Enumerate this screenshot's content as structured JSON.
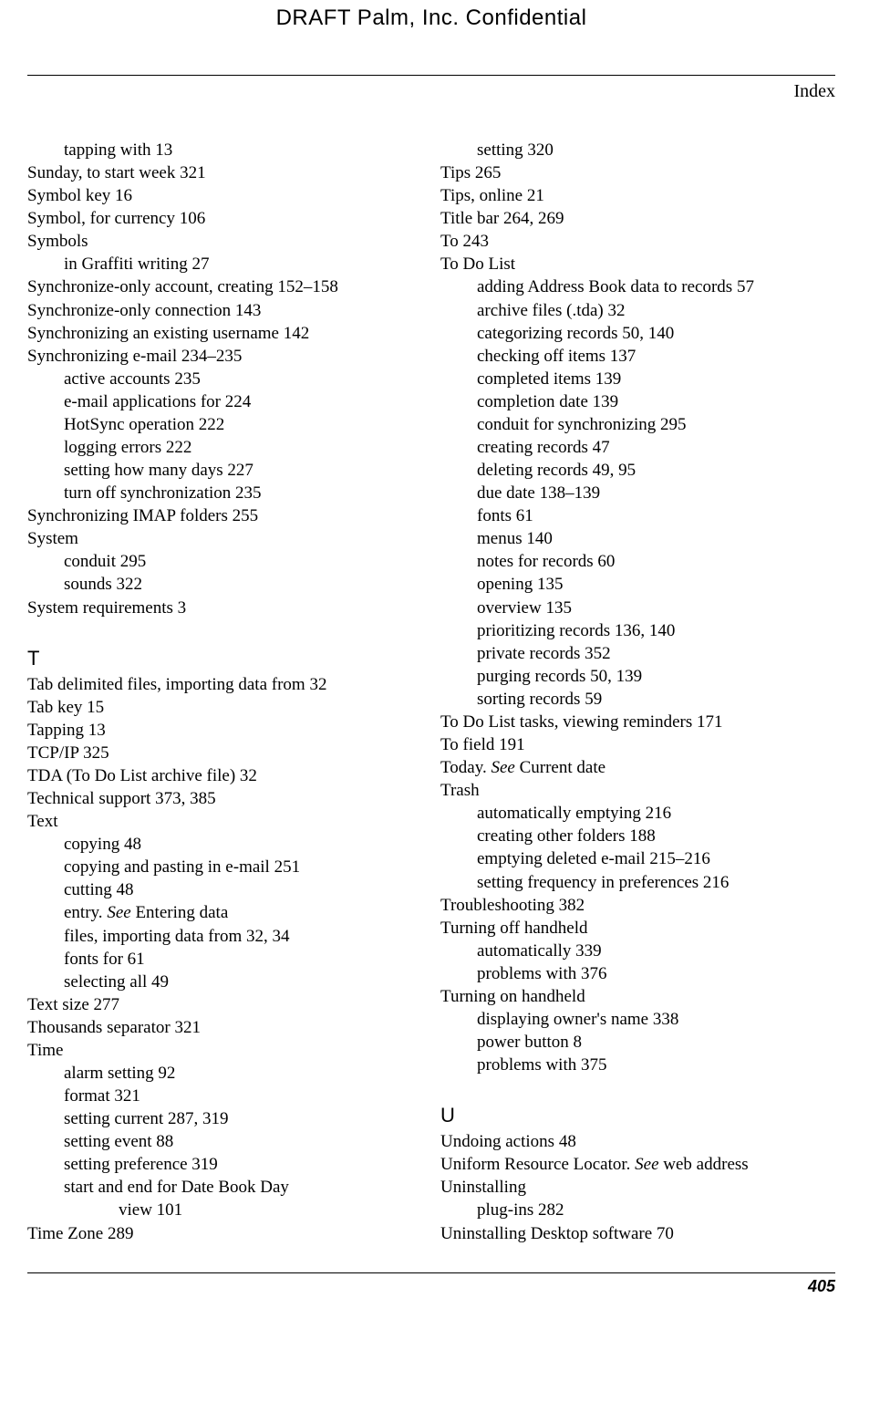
{
  "header": {
    "draft_line": "DRAFT   Palm, Inc. Confidential",
    "section_label": "Index"
  },
  "footer": {
    "page_number": "405"
  },
  "left": [
    {
      "t": "tapping with  13",
      "lvl": 1
    },
    {
      "t": "Sunday, to start week  321",
      "lvl": 0
    },
    {
      "t": "Symbol key  16",
      "lvl": 0
    },
    {
      "t": "Symbol, for currency  106",
      "lvl": 0
    },
    {
      "t": "Symbols",
      "lvl": 0
    },
    {
      "t": "in Graffiti writing  27",
      "lvl": 1
    },
    {
      "t": "Synchronize-only account, creating  152–158",
      "lvl": 0
    },
    {
      "t": "Synchronize-only connection  143",
      "lvl": 0
    },
    {
      "t": "Synchronizing an existing username  142",
      "lvl": 0
    },
    {
      "t": "Synchronizing e-mail  234–235",
      "lvl": 0
    },
    {
      "t": "active accounts  235",
      "lvl": 1
    },
    {
      "t": "e-mail applications for  224",
      "lvl": 1
    },
    {
      "t": "HotSync operation  222",
      "lvl": 1
    },
    {
      "t": "logging errors  222",
      "lvl": 1
    },
    {
      "t": "setting how many days  227",
      "lvl": 1
    },
    {
      "t": "turn off synchronization  235",
      "lvl": 1
    },
    {
      "t": "Synchronizing IMAP folders  255",
      "lvl": 0
    },
    {
      "t": "System",
      "lvl": 0
    },
    {
      "t": "conduit  295",
      "lvl": 1
    },
    {
      "t": "sounds  322",
      "lvl": 1
    },
    {
      "t": "System requirements  3",
      "lvl": 0
    },
    {
      "t": "T",
      "letter": true
    },
    {
      "t": "Tab delimited files, importing data from  32",
      "lvl": 0
    },
    {
      "t": "Tab key  15",
      "lvl": 0
    },
    {
      "t": "Tapping  13",
      "lvl": 0
    },
    {
      "t": "TCP/IP  325",
      "lvl": 0
    },
    {
      "t": "TDA (To Do List archive file)  32",
      "lvl": 0
    },
    {
      "t": "Technical support  373, 385",
      "lvl": 0
    },
    {
      "t": "Text",
      "lvl": 0
    },
    {
      "t": "copying  48",
      "lvl": 1
    },
    {
      "t": "copying and pasting in e-mail  251",
      "lvl": 1
    },
    {
      "t": "cutting  48",
      "lvl": 1
    },
    {
      "html": "entry. <span class=\"italic\">See</span> Entering data",
      "lvl": 1
    },
    {
      "t": "files, importing data from  32, 34",
      "lvl": 1
    },
    {
      "t": "fonts for  61",
      "lvl": 1
    },
    {
      "t": "selecting all  49",
      "lvl": 1
    },
    {
      "t": "Text size  277",
      "lvl": 0
    },
    {
      "t": "Thousands separator  321",
      "lvl": 0
    },
    {
      "t": "Time",
      "lvl": 0
    },
    {
      "t": "alarm setting  92",
      "lvl": 1
    },
    {
      "t": "format  321",
      "lvl": 1
    },
    {
      "t": "setting current  287, 319",
      "lvl": 1
    },
    {
      "t": "setting event  88",
      "lvl": 1
    },
    {
      "t": "setting preference  319",
      "lvl": 1
    },
    {
      "t": "start and end for Date Book Day ",
      "lvl": 1
    },
    {
      "t": "view  101",
      "lvl": 2
    },
    {
      "t": "Time Zone  289",
      "lvl": 0
    }
  ],
  "right": [
    {
      "t": "setting  320",
      "lvl": 1
    },
    {
      "t": "Tips  265",
      "lvl": 0
    },
    {
      "t": "Tips, online  21",
      "lvl": 0
    },
    {
      "t": "Title bar  264, 269",
      "lvl": 0
    },
    {
      "t": "To  243",
      "lvl": 0
    },
    {
      "t": "To Do List",
      "lvl": 0
    },
    {
      "t": "adding Address Book data to records  57",
      "lvl": 1
    },
    {
      "t": "archive files (.tda)  32",
      "lvl": 1
    },
    {
      "t": "categorizing records  50, 140",
      "lvl": 1
    },
    {
      "t": "checking off items  137",
      "lvl": 1
    },
    {
      "t": "completed items  139",
      "lvl": 1
    },
    {
      "t": "completion date  139",
      "lvl": 1
    },
    {
      "t": "conduit for synchronizing  295",
      "lvl": 1
    },
    {
      "t": "creating records  47",
      "lvl": 1
    },
    {
      "t": "deleting records  49, 95",
      "lvl": 1
    },
    {
      "t": "due date  138–139",
      "lvl": 1
    },
    {
      "t": "fonts  61",
      "lvl": 1
    },
    {
      "t": "menus  140",
      "lvl": 1
    },
    {
      "t": "notes for records  60",
      "lvl": 1
    },
    {
      "t": "opening  135",
      "lvl": 1
    },
    {
      "t": "overview  135",
      "lvl": 1
    },
    {
      "t": "prioritizing records  136, 140",
      "lvl": 1
    },
    {
      "t": "private records  352",
      "lvl": 1
    },
    {
      "t": "purging records  50, 139",
      "lvl": 1
    },
    {
      "t": "sorting records  59",
      "lvl": 1
    },
    {
      "t": "To Do List tasks, viewing reminders  171",
      "lvl": 0
    },
    {
      "t": "To field  191",
      "lvl": 0
    },
    {
      "html": "Today. <span class=\"italic\">See</span> Current date",
      "lvl": 0
    },
    {
      "t": "Trash",
      "lvl": 0
    },
    {
      "t": "automatically emptying  216",
      "lvl": 1
    },
    {
      "t": "creating other folders  188",
      "lvl": 1
    },
    {
      "t": "emptying deleted e-mail  215–216",
      "lvl": 1
    },
    {
      "t": "setting frequency in preferences  216",
      "lvl": 1
    },
    {
      "t": "Troubleshooting  382",
      "lvl": 0
    },
    {
      "t": "Turning off handheld",
      "lvl": 0
    },
    {
      "t": "automatically  339",
      "lvl": 1
    },
    {
      "t": "problems with  376",
      "lvl": 1
    },
    {
      "t": "Turning on handheld",
      "lvl": 0
    },
    {
      "t": "displaying owner's name  338",
      "lvl": 1
    },
    {
      "t": "power button  8",
      "lvl": 1
    },
    {
      "t": "problems with  375",
      "lvl": 1
    },
    {
      "t": "U",
      "letter": true
    },
    {
      "t": "Undoing actions  48",
      "lvl": 0
    },
    {
      "html": "Uniform Resource Locator. <span class=\"italic\">See</span> web address",
      "lvl": 0
    },
    {
      "t": "Uninstalling",
      "lvl": 0
    },
    {
      "t": "plug-ins  282",
      "lvl": 1
    },
    {
      "t": "Uninstalling Desktop software  70",
      "lvl": 0
    }
  ]
}
